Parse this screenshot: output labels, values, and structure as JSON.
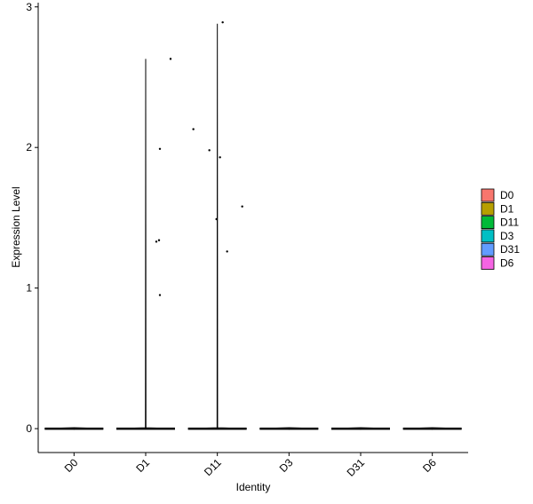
{
  "chart_data": {
    "type": "violin",
    "x_label": "Identity",
    "y_label": "Expression Level",
    "categories": [
      "D0",
      "D1",
      "D11",
      "D3",
      "D31",
      "D6"
    ],
    "colors": [
      "#F8766D",
      "#B79F00",
      "#00BA38",
      "#00BFC4",
      "#619CFF",
      "#F564E3"
    ],
    "violin_max": [
      0,
      2.63,
      2.88,
      0,
      0,
      0
    ],
    "points": [
      [],
      [
        2.63,
        1.99,
        1.34,
        1.33,
        0.95
      ],
      [
        2.89,
        2.13,
        1.98,
        1.93,
        1.58,
        1.49,
        1.26
      ],
      [],
      [],
      []
    ],
    "ylim": [
      -0.17,
      3.03
    ],
    "yticks": [
      0,
      1,
      2,
      3
    ],
    "legend_position": "right"
  }
}
